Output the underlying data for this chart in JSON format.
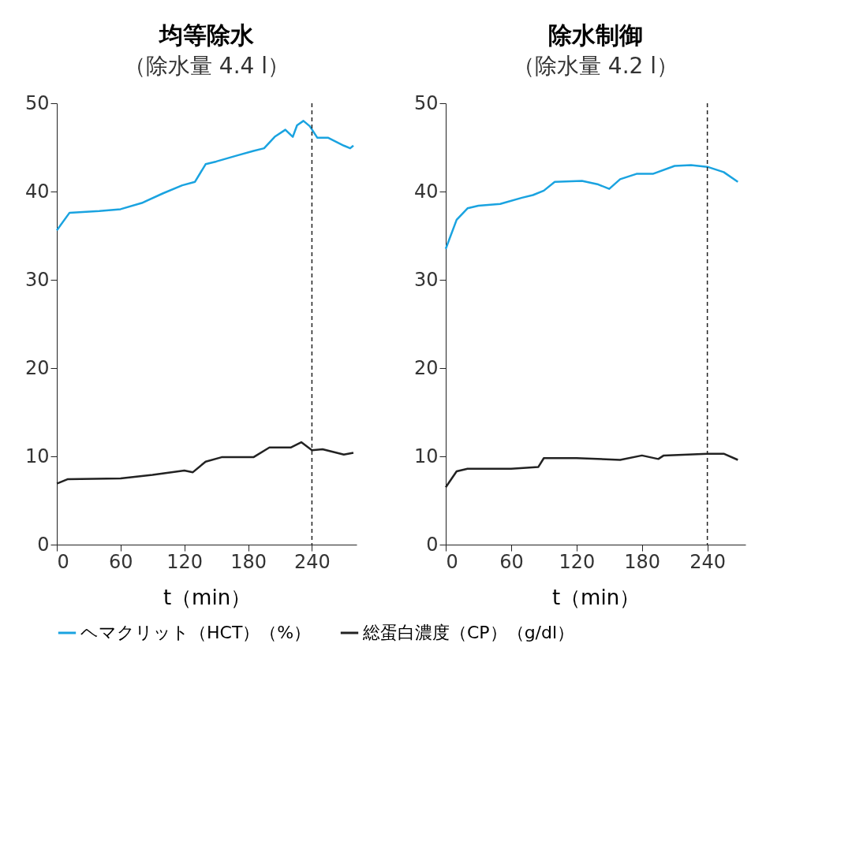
{
  "chart_data": [
    {
      "type": "line",
      "title": "均等除水",
      "subtitle": "（除水量 4.4 l）",
      "xlabel": "t（min）",
      "xlim": [
        0,
        282
      ],
      "xticks": [
        0,
        60,
        120,
        180,
        240
      ],
      "ylim": [
        0,
        50
      ],
      "yticks": [
        0,
        10,
        20,
        30,
        40,
        50
      ],
      "grid": false,
      "legend": "bottom",
      "ref_lines": [
        {
          "axis": "x",
          "value": 240,
          "line_style": "dashed",
          "color": "#222222"
        }
      ],
      "series": [
        {
          "name": "ヘマクリット（HCT）（%）",
          "color": "#1aa3e0",
          "x": [
            0,
            12,
            40,
            60,
            80,
            100,
            118,
            130,
            140,
            150,
            170,
            185,
            195,
            205,
            215,
            222,
            226,
            232,
            238,
            245,
            255,
            270,
            276,
            279
          ],
          "values": [
            35.6,
            37.6,
            37.8,
            38.0,
            38.7,
            39.8,
            40.7,
            41.1,
            43.1,
            43.4,
            44.1,
            44.6,
            44.9,
            46.2,
            47.0,
            46.2,
            47.5,
            48.0,
            47.4,
            46.1,
            46.1,
            45.2,
            44.9,
            45.2
          ]
        },
        {
          "name": "総蛋白濃度（CP）（g/dl）",
          "color": "#222222",
          "x": [
            0,
            10,
            60,
            90,
            120,
            128,
            140,
            155,
            185,
            200,
            220,
            230,
            240,
            250,
            270,
            279
          ],
          "values": [
            6.9,
            7.4,
            7.5,
            7.9,
            8.4,
            8.2,
            9.4,
            9.9,
            9.9,
            11.0,
            11.0,
            11.6,
            10.7,
            10.8,
            10.2,
            10.4
          ]
        }
      ]
    },
    {
      "type": "line",
      "title": "除水制御",
      "subtitle": "（除水量 4.2 l）",
      "xlabel": "t（min）",
      "xlim": [
        0,
        275
      ],
      "xticks": [
        0,
        60,
        120,
        180,
        240
      ],
      "ylim": [
        0,
        50
      ],
      "yticks": [
        0,
        10,
        20,
        30,
        40,
        50
      ],
      "grid": false,
      "legend": "bottom",
      "ref_lines": [
        {
          "axis": "x",
          "value": 240,
          "line_style": "dashed",
          "color": "#222222"
        }
      ],
      "series": [
        {
          "name": "ヘマクリット（HCT）（%）",
          "color": "#1aa3e0",
          "x": [
            0,
            10,
            20,
            30,
            50,
            70,
            80,
            90,
            100,
            125,
            140,
            150,
            160,
            175,
            190,
            210,
            225,
            240,
            255,
            268
          ],
          "values": [
            33.5,
            36.8,
            38.1,
            38.4,
            38.6,
            39.3,
            39.6,
            40.1,
            41.1,
            41.2,
            40.8,
            40.3,
            41.4,
            42.0,
            42.0,
            42.9,
            43.0,
            42.8,
            42.2,
            41.1
          ]
        },
        {
          "name": "総蛋白濃度（CP）（g/dl）",
          "color": "#222222",
          "x": [
            0,
            10,
            20,
            60,
            85,
            90,
            120,
            160,
            180,
            195,
            200,
            240,
            255,
            268
          ],
          "values": [
            6.5,
            8.3,
            8.6,
            8.6,
            8.8,
            9.8,
            9.8,
            9.6,
            10.1,
            9.7,
            10.1,
            10.3,
            10.3,
            9.6
          ]
        }
      ]
    }
  ]
}
